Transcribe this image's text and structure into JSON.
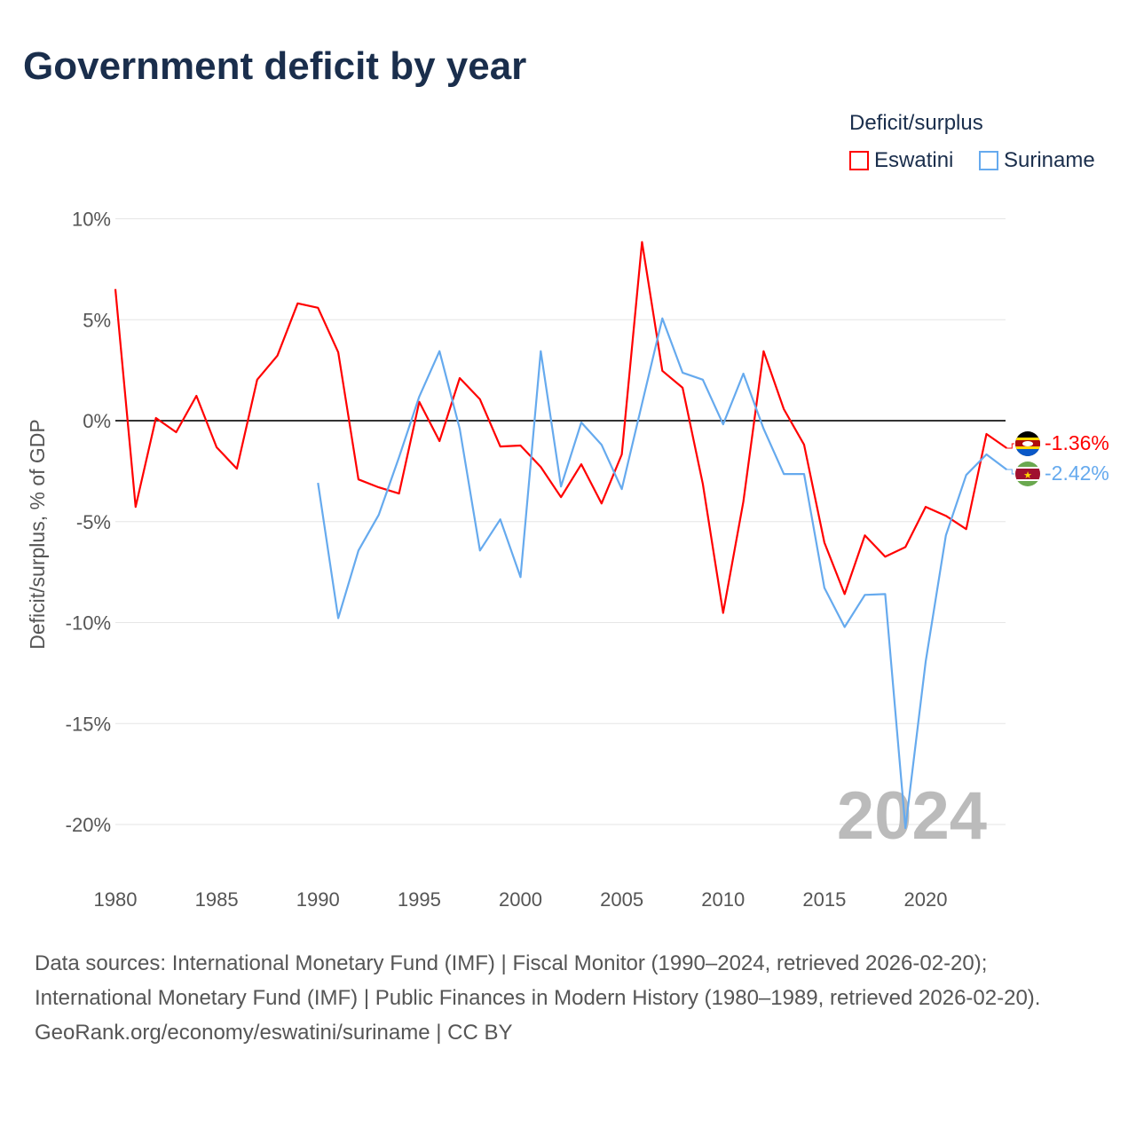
{
  "chart_data": {
    "type": "line",
    "title": "Government deficit by year",
    "legend_title": "Deficit/surplus",
    "legend_position": "top-right",
    "ylabel": "Deficit/surplus, % of GDP",
    "xlabel": "",
    "ylim": [
      -20,
      10
    ],
    "xlim": [
      1980,
      2024
    ],
    "yticks": [
      "10%",
      "5%",
      "0%",
      "-5%",
      "-10%",
      "-15%",
      "-20%"
    ],
    "ytick_values": [
      10,
      5,
      0,
      -5,
      -10,
      -15,
      -20
    ],
    "xticks": [
      "1980",
      "1985",
      "1990",
      "1995",
      "2000",
      "2005",
      "2010",
      "2015",
      "2020"
    ],
    "xtick_values": [
      1980,
      1985,
      1990,
      1995,
      2000,
      2005,
      2010,
      2015,
      2020
    ],
    "year_watermark": "2024",
    "series": [
      {
        "name": "Eswatini",
        "color": "#ff0000",
        "end_label": "-1.36%",
        "start_year": 1980,
        "values": [
          6.52,
          -4.27,
          0.13,
          -0.57,
          1.23,
          -1.32,
          -2.38,
          2.03,
          3.22,
          5.81,
          5.59,
          3.39,
          -2.91,
          -3.3,
          -3.61,
          0.93,
          -1.01,
          2.11,
          1.06,
          -1.28,
          -1.23,
          -2.29,
          -3.79,
          -2.16,
          -4.1,
          -1.67,
          8.85,
          2.47,
          1.63,
          -3.13,
          -9.52,
          -4.01,
          3.44,
          0.57,
          -1.19,
          -6.04,
          -8.59,
          -5.68,
          -6.74,
          -6.26,
          -4.27,
          -4.71,
          -5.37,
          -0.66,
          -1.36
        ]
      },
      {
        "name": "Suriname",
        "color": "#66aaee",
        "end_label": "-2.42%",
        "start_year": 1990,
        "values": [
          -3.08,
          -9.78,
          -6.43,
          -4.67,
          -1.81,
          1.19,
          3.44,
          -0.4,
          -6.43,
          -4.89,
          -7.75,
          3.44,
          -3.26,
          -0.09,
          -1.19,
          -3.39,
          0.84,
          5.07,
          2.38,
          2.03,
          -0.18,
          2.33,
          -0.4,
          -2.64,
          -2.64,
          -8.28,
          -10.22,
          -8.63,
          -8.59,
          -20.18,
          -11.94,
          -5.68,
          -2.69,
          -1.67,
          -2.42
        ]
      }
    ]
  },
  "source": {
    "line1": "Data sources: International Monetary Fund (IMF) | Fiscal Monitor (1990–2024, retrieved 2026-02-20); International Monetary Fund (IMF) | Public Finances in Modern History (1980–1989, retrieved 2026-02-20).",
    "line2": "GeoRank.org/economy/eswatini/suriname | CC BY"
  }
}
